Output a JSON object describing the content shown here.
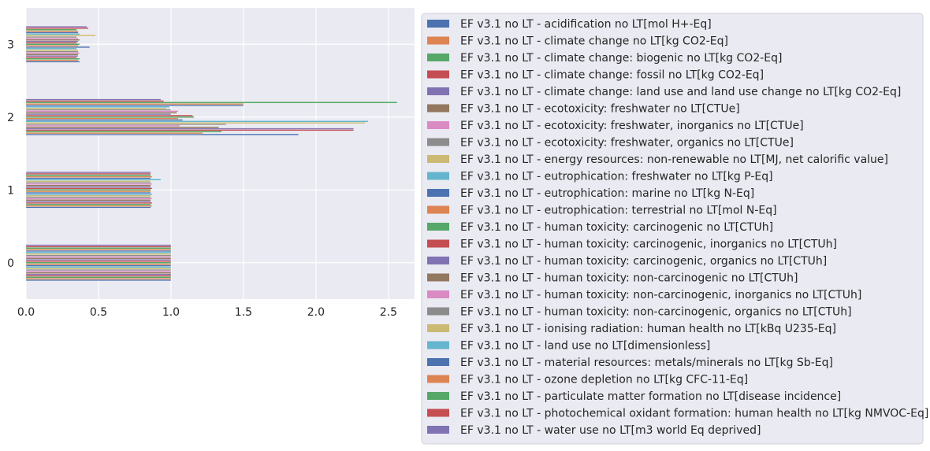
{
  "chart_data": {
    "type": "bar",
    "orientation": "horizontal",
    "categories": [
      "0",
      "1",
      "2",
      "3"
    ],
    "x_ticks": [
      "0.0",
      "0.5",
      "1.0",
      "1.5",
      "2.0",
      "2.5"
    ],
    "xlim": [
      0,
      2.68
    ],
    "grid": true,
    "legend_position": "right",
    "title": "",
    "xlabel": "",
    "ylabel": "",
    "palette": [
      "#4c72b0",
      "#dd8452",
      "#55a868",
      "#c44e52",
      "#8172b3",
      "#937860",
      "#da8bc3",
      "#8c8c8c",
      "#ccb974",
      "#64b5cd"
    ],
    "series": [
      {
        "name": "EF v3.1 no LT - acidification no LT[mol H+-Eq]",
        "values": [
          1.0,
          0.86,
          1.88,
          0.37
        ]
      },
      {
        "name": "EF v3.1 no LT - climate change no LT[kg CO2-Eq]",
        "values": [
          1.0,
          0.87,
          1.22,
          0.36
        ]
      },
      {
        "name": "EF v3.1 no LT - climate change: biogenic no LT[kg CO2-Eq]",
        "values": [
          1.0,
          0.86,
          1.35,
          0.37
        ]
      },
      {
        "name": "EF v3.1 no LT - climate change: fossil no LT[kg CO2-Eq]",
        "values": [
          1.0,
          0.87,
          2.26,
          0.35
        ]
      },
      {
        "name": "EF v3.1 no LT - climate change: land use and land use change no LT[kg CO2-Eq]",
        "values": [
          1.0,
          0.86,
          2.26,
          0.36
        ]
      },
      {
        "name": "EF v3.1 no LT - ecotoxicity: freshwater no LT[CTUe]",
        "values": [
          1.0,
          0.86,
          1.33,
          0.36
        ]
      },
      {
        "name": "EF v3.1 no LT - ecotoxicity: freshwater, inorganics no LT[CTUe]",
        "values": [
          1.0,
          0.87,
          1.06,
          0.37
        ]
      },
      {
        "name": "EF v3.1 no LT - ecotoxicity: freshwater, organics no LT[CTUe]",
        "values": [
          1.0,
          0.86,
          1.38,
          0.36
        ]
      },
      {
        "name": "EF v3.1 no LT - energy resources: non-renewable no LT[MJ, net calorific value]",
        "values": [
          1.0,
          0.86,
          2.34,
          0.36
        ]
      },
      {
        "name": "EF v3.1 no LT - eutrophication: freshwater no LT[kg P-Eq]",
        "values": [
          1.0,
          0.87,
          2.36,
          0.35
        ]
      },
      {
        "name": "EF v3.1 no LT - eutrophication: marine no LT[kg N-Eq]",
        "values": [
          1.0,
          0.86,
          1.08,
          0.44
        ]
      },
      {
        "name": "EF v3.1 no LT - eutrophication: terrestrial no LT[mol N-Eq]",
        "values": [
          1.0,
          0.86,
          1.05,
          0.36
        ]
      },
      {
        "name": "EF v3.1 no LT - human toxicity: carcinogenic no LT[CTUh]",
        "values": [
          1.0,
          0.86,
          1.16,
          0.37
        ]
      },
      {
        "name": "EF v3.1 no LT - human toxicity: carcinogenic, inorganics no LT[CTUh]",
        "values": [
          1.0,
          0.87,
          1.15,
          0.35
        ]
      },
      {
        "name": "EF v3.1 no LT - human toxicity: carcinogenic, organics no LT[CTUh]",
        "values": [
          1.0,
          0.86,
          1.0,
          0.36
        ]
      },
      {
        "name": "EF v3.1 no LT - human toxicity: non-carcinogenic no LT[CTUh]",
        "values": [
          1.0,
          0.86,
          1.04,
          0.37
        ]
      },
      {
        "name": "EF v3.1 no LT - human toxicity: non-carcinogenic, inorganics no LT[CTUh]",
        "values": [
          1.0,
          0.87,
          1.05,
          0.36
        ]
      },
      {
        "name": "EF v3.1 no LT - human toxicity: non-carcinogenic, organics no LT[CTUh]",
        "values": [
          1.0,
          0.86,
          1.0,
          0.35
        ]
      },
      {
        "name": "EF v3.1 no LT - ionising radiation: human health no LT[kBq U235-Eq]",
        "values": [
          1.0,
          0.86,
          0.97,
          0.48
        ]
      },
      {
        "name": "EF v3.1 no LT - land use no LT[dimensionless]",
        "values": [
          1.0,
          0.93,
          0.99,
          0.37
        ]
      },
      {
        "name": "EF v3.1 no LT - material resources: metals/minerals no LT[kg Sb-Eq]",
        "values": [
          1.0,
          0.86,
          1.5,
          0.36
        ]
      },
      {
        "name": "EF v3.1 no LT - ozone depletion no LT[kg CFC-11-Eq]",
        "values": [
          1.0,
          0.87,
          1.5,
          0.36
        ]
      },
      {
        "name": "EF v3.1 no LT - particulate matter formation no LT[disease incidence]",
        "values": [
          1.0,
          0.86,
          2.56,
          0.35
        ]
      },
      {
        "name": "EF v3.1 no LT - photochemical oxidant formation: human health no LT[kg NMVOC-Eq]",
        "values": [
          1.0,
          0.86,
          0.95,
          0.43
        ]
      },
      {
        "name": "EF v3.1 no LT - water use no LT[m3 world Eq deprived]",
        "values": [
          1.0,
          0.86,
          0.93,
          0.42
        ]
      }
    ]
  }
}
